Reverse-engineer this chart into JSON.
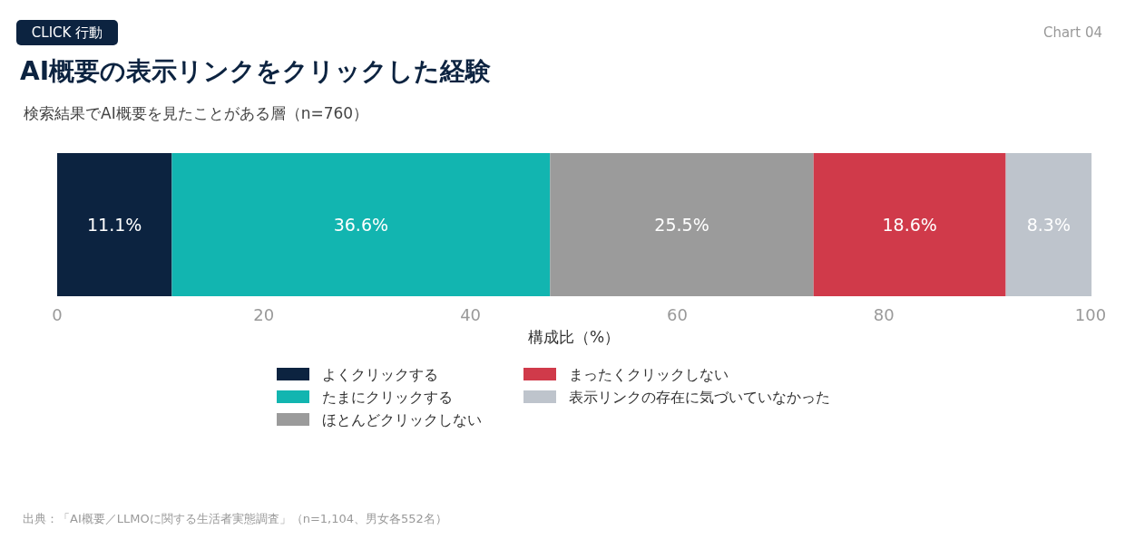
{
  "chart_data": {
    "type": "bar",
    "orientation": "horizontal",
    "stacked": true,
    "title": "AI概要の表示リンクをクリックした経験",
    "subtitle": "検索結果でAI概要を見たことがある層（n=760）",
    "xlabel": "構成比（%）",
    "categories": [
      null
    ],
    "series": [
      {
        "name": "よくクリックする",
        "color": "#0c2340",
        "values": [
          11.1
        ],
        "value_labels": [
          "11.1%"
        ]
      },
      {
        "name": "たまにクリックする",
        "color": "#12b5b0",
        "values": [
          36.6
        ],
        "value_labels": [
          "36.6%"
        ]
      },
      {
        "name": "ほとんどクリックしない",
        "color": "#9b9b9b",
        "values": [
          25.5
        ],
        "value_labels": [
          "25.5%"
        ]
      },
      {
        "name": "まったくクリックしない",
        "color": "#d03a4a",
        "values": [
          18.6
        ],
        "value_labels": [
          "18.6%"
        ]
      },
      {
        "name": "表示リンクの存在に気づいていなかった",
        "color": "#bec4cc",
        "values": [
          8.3
        ],
        "value_labels": [
          "8.3%"
        ]
      }
    ],
    "xlim": [
      0,
      100
    ],
    "xticks": [
      0,
      20,
      40,
      60,
      80,
      100
    ],
    "grid": false,
    "legend": "bottom",
    "annotations": [
      "CLICK 行動",
      "Chart 04",
      "出典：「AI概要／LLMOに関する生活者実態調査」（n=1,104、男女各552名）"
    ]
  }
}
